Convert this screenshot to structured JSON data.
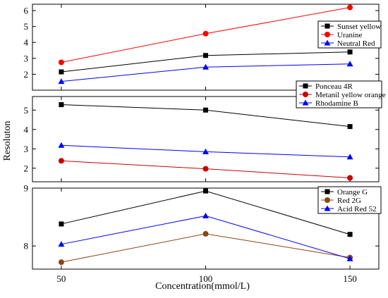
{
  "chart_data": {
    "type": "line",
    "xlabel": "Concentration(mmol/L)",
    "ylabel": "Resoluton",
    "x_ticks": [
      "50",
      "100",
      "150"
    ],
    "xlim": [
      40,
      160
    ],
    "panels": [
      {
        "ylim": [
          1.0,
          6.4
        ],
        "y_ticks": [
          "2",
          "3",
          "4",
          "5",
          "6"
        ],
        "x": [
          50,
          100,
          150
        ],
        "series": [
          {
            "name": "Sunset yellow",
            "values": [
              2.15,
              3.18,
              3.4
            ],
            "color": "#000000",
            "marker": "square"
          },
          {
            "name": "Uranine",
            "values": [
              2.75,
              4.55,
              6.2
            ],
            "color": "#ff0000",
            "marker": "circle"
          },
          {
            "name": "Neutral Red",
            "values": [
              1.55,
              2.45,
              2.65
            ],
            "color": "#0000ff",
            "marker": "triangle"
          }
        ]
      },
      {
        "ylim": [
          1.3,
          5.7
        ],
        "y_ticks": [
          "2",
          "3",
          "4",
          "5"
        ],
        "x": [
          50,
          100,
          150
        ],
        "series": [
          {
            "name": "Ponceau 4R",
            "values": [
              5.28,
              5.0,
              4.15
            ],
            "color": "#000000",
            "marker": "square"
          },
          {
            "name": "Metanil yellow orange",
            "values": [
              2.38,
              1.97,
              1.5
            ],
            "color": "#cc0000",
            "marker": "circle"
          },
          {
            "name": "Rhodamine B",
            "values": [
              3.18,
              2.85,
              2.58
            ],
            "color": "#0000ff",
            "marker": "triangle"
          }
        ]
      },
      {
        "ylim": [
          7.6,
          9.0
        ],
        "y_ticks": [
          "8",
          "9"
        ],
        "x": [
          50,
          100,
          150
        ],
        "series": [
          {
            "name": "Orange G",
            "values": [
              8.38,
              8.95,
              8.2
            ],
            "color": "#000000",
            "marker": "square"
          },
          {
            "name": "Red 2G",
            "values": [
              7.72,
              8.21,
              7.8
            ],
            "color": "#8b4513",
            "marker": "circle"
          },
          {
            "name": "Acid Red 52",
            "values": [
              8.03,
              8.52,
              7.78
            ],
            "color": "#0000ff",
            "marker": "triangle"
          }
        ]
      }
    ],
    "grid": false,
    "legend_placement": "right"
  }
}
